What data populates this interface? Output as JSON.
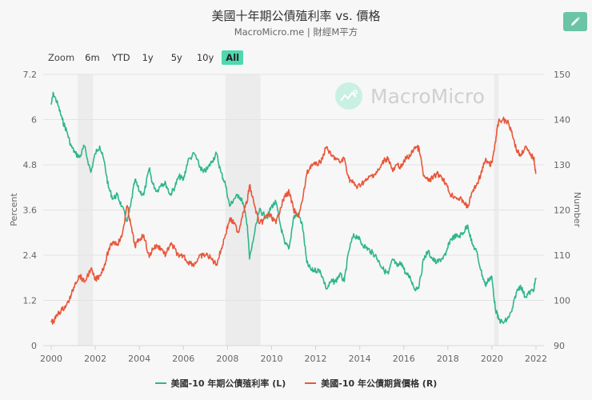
{
  "header": {
    "title": "美國十年期公債殖利率 vs. 價格",
    "subtitle": "MacroMicro.me | 財經M平方",
    "edit_icon": "pencil-icon"
  },
  "zoom": {
    "label": "Zoom",
    "buttons": [
      "6m",
      "YTD",
      "1y",
      "5y",
      "10y",
      "All"
    ],
    "active": "All"
  },
  "watermark": {
    "text": "MacroMicro"
  },
  "legend": [
    {
      "label": "美國-10 年期公債殖利率 (L)",
      "color": "#2eb68c"
    },
    {
      "label": "美國-10 年公債期貨價格 (R)",
      "color": "#e8573a"
    }
  ],
  "chart_data": {
    "type": "line",
    "title": "美國十年期公債殖利率 vs. 價格",
    "subtitle": "MacroMicro.me | 財經M平方",
    "xlabel": "",
    "ylabel_left": "Percent",
    "ylabel_right": "Number",
    "x_ticks": [
      "2000",
      "2002",
      "2004",
      "2006",
      "2008",
      "2010",
      "2012",
      "2014",
      "2016",
      "2018",
      "2020",
      "2022"
    ],
    "y_left_ticks": [
      "0",
      "1.2",
      "2.4",
      "3.6",
      "4.8",
      "6",
      "7.2"
    ],
    "y_right_ticks": [
      "90",
      "100",
      "110",
      "120",
      "130",
      "140",
      "150"
    ],
    "ylim_left": [
      0,
      7.2
    ],
    "ylim_right": [
      90,
      150
    ],
    "xlim": [
      2000,
      2022
    ],
    "grid": true,
    "legend_position": "bottom",
    "recession_bands": [
      [
        2001.2,
        2001.9
      ],
      [
        2007.9,
        2009.5
      ],
      [
        2020.1,
        2020.3
      ]
    ],
    "series": [
      {
        "name": "美國-10 年期公債殖利率 (L)",
        "axis": "left",
        "color": "#2eb68c",
        "x": [
          2000.0,
          2000.1,
          2000.3,
          2000.5,
          2000.7,
          2000.9,
          2001.1,
          2001.3,
          2001.5,
          2001.8,
          2002.0,
          2002.2,
          2002.4,
          2002.6,
          2002.8,
          2003.0,
          2003.2,
          2003.45,
          2003.6,
          2003.8,
          2004.0,
          2004.2,
          2004.45,
          2004.6,
          2004.8,
          2005.0,
          2005.2,
          2005.4,
          2005.6,
          2005.8,
          2006.0,
          2006.2,
          2006.5,
          2006.7,
          2006.9,
          2007.1,
          2007.3,
          2007.5,
          2007.7,
          2007.9,
          2008.1,
          2008.3,
          2008.5,
          2008.7,
          2008.9,
          2009.0,
          2009.2,
          2009.45,
          2009.6,
          2009.8,
          2010.0,
          2010.2,
          2010.4,
          2010.6,
          2010.8,
          2011.0,
          2011.2,
          2011.4,
          2011.6,
          2011.8,
          2012.0,
          2012.2,
          2012.5,
          2012.7,
          2012.9,
          2013.1,
          2013.3,
          2013.5,
          2013.7,
          2013.9,
          2014.1,
          2014.3,
          2014.5,
          2014.7,
          2014.9,
          2015.1,
          2015.3,
          2015.5,
          2015.7,
          2015.9,
          2016.1,
          2016.3,
          2016.5,
          2016.7,
          2016.9,
          2017.1,
          2017.3,
          2017.5,
          2017.7,
          2017.9,
          2018.1,
          2018.3,
          2018.5,
          2018.7,
          2018.9,
          2019.1,
          2019.3,
          2019.5,
          2019.7,
          2019.9,
          2020.0,
          2020.15,
          2020.3,
          2020.5,
          2020.7,
          2020.9,
          2021.1,
          2021.3,
          2021.5,
          2021.7,
          2021.9,
          2022.0
        ],
        "values": [
          6.4,
          6.7,
          6.4,
          6.0,
          5.7,
          5.3,
          5.1,
          5.0,
          5.3,
          4.6,
          5.1,
          5.3,
          4.9,
          4.2,
          3.9,
          4.0,
          3.7,
          3.3,
          3.7,
          4.4,
          4.1,
          4.0,
          4.7,
          4.3,
          4.1,
          4.3,
          4.3,
          4.0,
          4.2,
          4.5,
          4.4,
          4.9,
          5.1,
          4.8,
          4.6,
          4.7,
          4.9,
          5.1,
          4.6,
          4.3,
          3.7,
          3.9,
          4.0,
          3.8,
          3.2,
          2.3,
          2.9,
          3.6,
          3.5,
          3.4,
          3.7,
          3.8,
          3.2,
          2.7,
          2.6,
          3.4,
          3.5,
          3.2,
          2.2,
          2.0,
          2.0,
          2.0,
          1.5,
          1.7,
          1.7,
          1.9,
          1.7,
          2.5,
          2.9,
          2.9,
          2.7,
          2.6,
          2.5,
          2.4,
          2.2,
          2.0,
          1.9,
          2.3,
          2.1,
          2.2,
          1.9,
          1.8,
          1.5,
          1.6,
          2.3,
          2.5,
          2.3,
          2.2,
          2.3,
          2.4,
          2.8,
          2.9,
          2.9,
          3.0,
          3.2,
          2.7,
          2.5,
          2.0,
          1.6,
          1.8,
          1.8,
          1.0,
          0.7,
          0.6,
          0.7,
          0.9,
          1.4,
          1.6,
          1.3,
          1.4,
          1.5,
          1.8
        ],
        "approximate": true
      },
      {
        "name": "美國-10 年公債期貨價格 (R)",
        "axis": "right",
        "color": "#e8573a",
        "x": [
          2000.0,
          2000.1,
          2000.3,
          2000.5,
          2000.7,
          2000.9,
          2001.1,
          2001.3,
          2001.5,
          2001.8,
          2002.0,
          2002.2,
          2002.4,
          2002.6,
          2002.8,
          2003.0,
          2003.2,
          2003.45,
          2003.6,
          2003.8,
          2004.0,
          2004.2,
          2004.45,
          2004.6,
          2004.8,
          2005.0,
          2005.2,
          2005.4,
          2005.6,
          2005.8,
          2006.0,
          2006.2,
          2006.5,
          2006.7,
          2006.9,
          2007.1,
          2007.3,
          2007.5,
          2007.7,
          2007.9,
          2008.1,
          2008.3,
          2008.5,
          2008.7,
          2008.9,
          2009.0,
          2009.2,
          2009.45,
          2009.6,
          2009.8,
          2010.0,
          2010.2,
          2010.4,
          2010.6,
          2010.8,
          2011.0,
          2011.2,
          2011.4,
          2011.6,
          2011.8,
          2012.0,
          2012.2,
          2012.5,
          2012.7,
          2012.9,
          2013.1,
          2013.3,
          2013.5,
          2013.7,
          2013.9,
          2014.1,
          2014.3,
          2014.5,
          2014.7,
          2014.9,
          2015.1,
          2015.3,
          2015.5,
          2015.7,
          2015.9,
          2016.1,
          2016.3,
          2016.5,
          2016.7,
          2016.9,
          2017.1,
          2017.3,
          2017.5,
          2017.7,
          2017.9,
          2018.1,
          2018.3,
          2018.5,
          2018.7,
          2018.9,
          2019.1,
          2019.3,
          2019.5,
          2019.7,
          2019.9,
          2020.0,
          2020.15,
          2020.3,
          2020.5,
          2020.7,
          2020.9,
          2021.1,
          2021.3,
          2021.5,
          2021.7,
          2021.9,
          2022.0
        ],
        "values": [
          95.5,
          95.2,
          97.0,
          98.0,
          99.0,
          101.0,
          104.0,
          105.5,
          104.0,
          107.0,
          104.5,
          105.5,
          107.5,
          111.0,
          113.0,
          112.5,
          114.0,
          121.0,
          117.0,
          112.0,
          113.5,
          114.5,
          109.5,
          111.5,
          112.0,
          111.5,
          110.0,
          112.5,
          111.5,
          109.5,
          110.0,
          108.5,
          108.0,
          109.5,
          110.0,
          110.0,
          109.0,
          108.0,
          111.0,
          114.5,
          118.0,
          117.0,
          115.0,
          119.5,
          122.0,
          125.5,
          121.5,
          117.0,
          117.5,
          119.0,
          118.5,
          117.0,
          120.5,
          123.0,
          124.0,
          120.0,
          118.5,
          122.0,
          128.0,
          130.0,
          130.0,
          130.5,
          134.0,
          132.0,
          131.5,
          130.5,
          131.5,
          127.0,
          126.0,
          125.0,
          126.0,
          126.5,
          127.5,
          128.0,
          129.0,
          131.0,
          131.5,
          128.5,
          130.0,
          129.5,
          131.5,
          132.0,
          134.0,
          133.5,
          127.5,
          126.5,
          127.0,
          128.0,
          127.5,
          126.0,
          123.5,
          123.0,
          122.5,
          122.0,
          120.5,
          124.0,
          125.5,
          128.0,
          131.0,
          130.0,
          130.5,
          135.0,
          139.5,
          140.0,
          139.5,
          137.5,
          133.5,
          132.0,
          134.0,
          132.5,
          131.5,
          128.0
        ],
        "approximate": true
      }
    ]
  }
}
